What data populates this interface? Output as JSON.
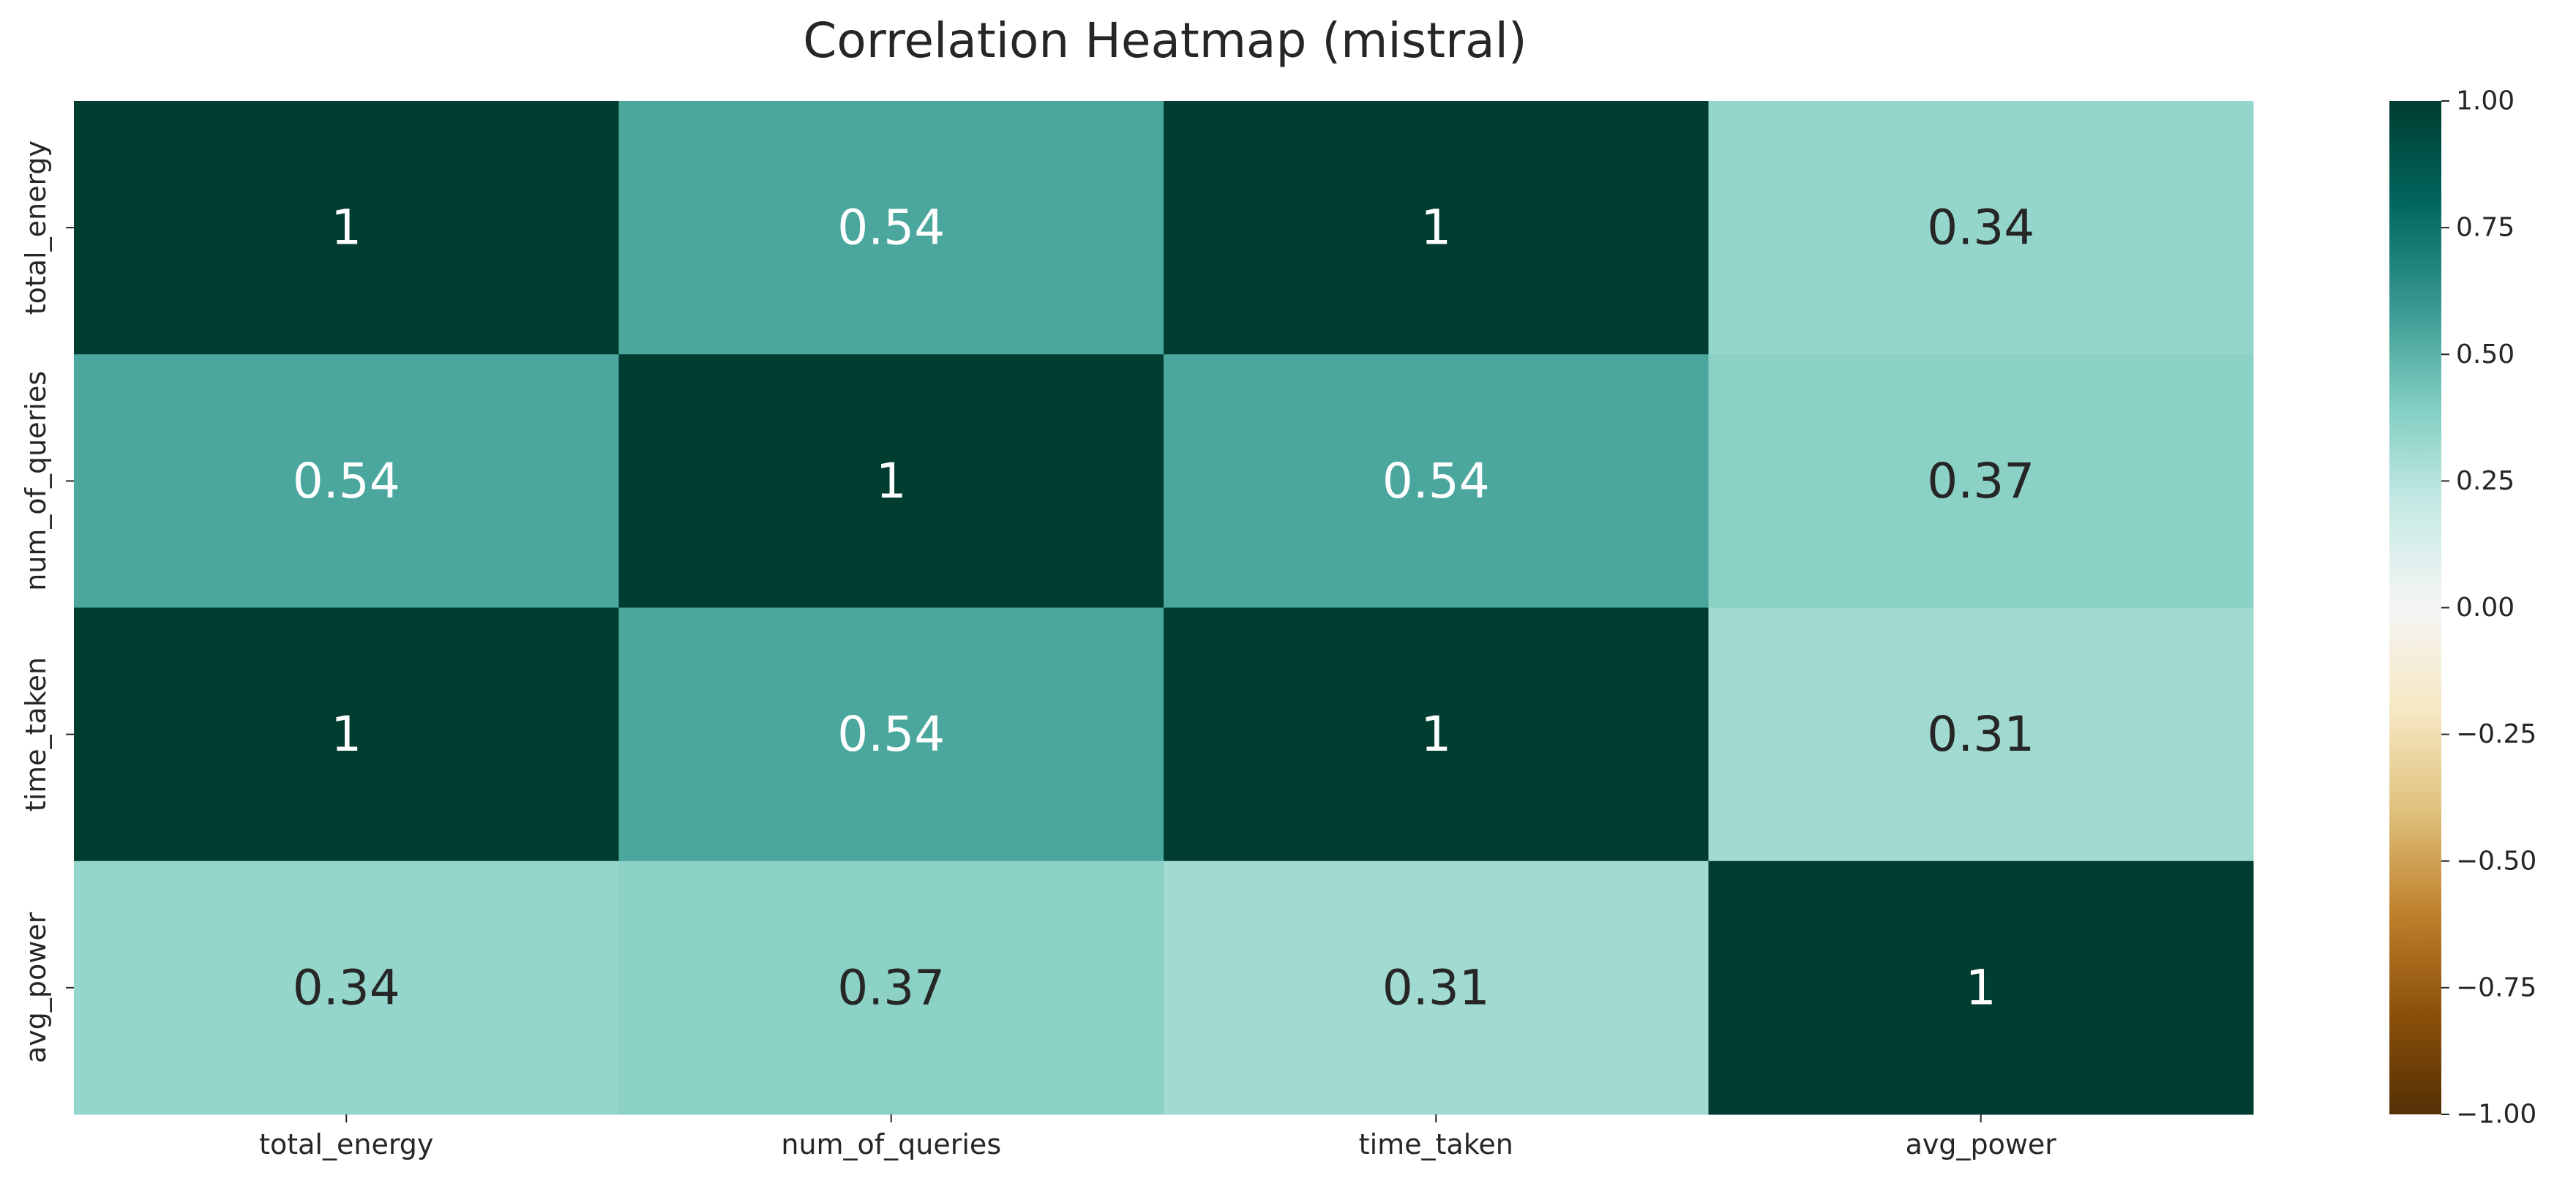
{
  "chart_data": {
    "type": "heatmap",
    "title": "Correlation Heatmap (mistral)",
    "rows": [
      "total_energy",
      "num_of_queries",
      "time_taken",
      "avg_power"
    ],
    "columns": [
      "total_energy",
      "num_of_queries",
      "time_taken",
      "avg_power"
    ],
    "values": [
      [
        1,
        0.54,
        1,
        0.34
      ],
      [
        0.54,
        1,
        0.54,
        0.37
      ],
      [
        1,
        0.54,
        1,
        0.31
      ],
      [
        0.34,
        0.37,
        0.31,
        1
      ]
    ],
    "annotations": [
      [
        "1",
        "0.54",
        "1",
        "0.34"
      ],
      [
        "0.54",
        "1",
        "0.54",
        "0.37"
      ],
      [
        "1",
        "0.54",
        "1",
        "0.31"
      ],
      [
        "0.34",
        "0.37",
        "0.31",
        "1"
      ]
    ],
    "colormap": "BrBG",
    "vmin": -1,
    "vmax": 1,
    "colorbar": {
      "ticks": [
        1.0,
        0.75,
        0.5,
        0.25,
        0.0,
        -0.25,
        -0.5,
        -0.75,
        -1.0
      ],
      "tick_labels": [
        "1.00",
        "0.75",
        "0.50",
        "0.25",
        "0.00",
        "−0.25",
        "−0.50",
        "−0.75",
        "−1.00"
      ]
    },
    "colors": {
      "dark_text": "#262626",
      "light_text": "#ffffff"
    }
  }
}
